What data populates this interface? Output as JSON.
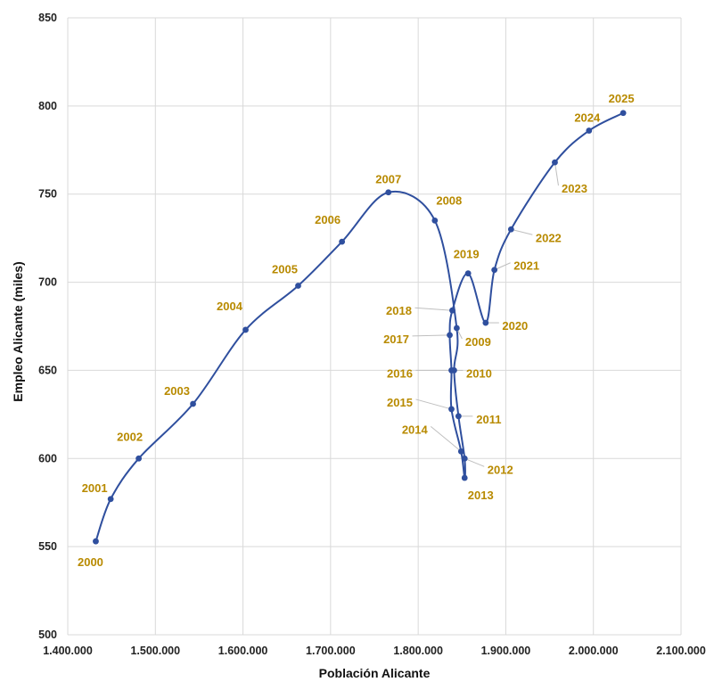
{
  "chart_data": {
    "type": "scatter",
    "title": "",
    "xlabel": "Población Alicante",
    "ylabel": "Empleo Alicante (miles)",
    "xlim": [
      1400000,
      2100000
    ],
    "ylim": [
      500,
      850
    ],
    "grid": true,
    "x_tick_labels": [
      "1.400.000",
      "1.500.000",
      "1.600.000",
      "1.700.000",
      "1.800.000",
      "1.900.000",
      "2.000.000",
      "2.100.000"
    ],
    "y_tick_labels": [
      "500",
      "550",
      "600",
      "650",
      "700",
      "750",
      "800",
      "850"
    ],
    "series_color": "#2f4f9e",
    "label_color": "#b88a00",
    "points": [
      {
        "label": "2000",
        "x": 1432000,
        "y": 553
      },
      {
        "label": "2001",
        "x": 1449000,
        "y": 577
      },
      {
        "label": "2002",
        "x": 1481000,
        "y": 600
      },
      {
        "label": "2003",
        "x": 1543000,
        "y": 631
      },
      {
        "label": "2004",
        "x": 1603000,
        "y": 673
      },
      {
        "label": "2005",
        "x": 1663000,
        "y": 698
      },
      {
        "label": "2006",
        "x": 1713000,
        "y": 723
      },
      {
        "label": "2007",
        "x": 1766000,
        "y": 751
      },
      {
        "label": "2008",
        "x": 1819000,
        "y": 735
      },
      {
        "label": "2009",
        "x": 1844000,
        "y": 674
      },
      {
        "label": "2010",
        "x": 1841000,
        "y": 650
      },
      {
        "label": "2011",
        "x": 1846000,
        "y": 624
      },
      {
        "label": "2012",
        "x": 1853000,
        "y": 600
      },
      {
        "label": "2013",
        "x": 1853000,
        "y": 589
      },
      {
        "label": "2014",
        "x": 1849000,
        "y": 604
      },
      {
        "label": "2015",
        "x": 1838000,
        "y": 628
      },
      {
        "label": "2016",
        "x": 1838000,
        "y": 650
      },
      {
        "label": "2017",
        "x": 1836000,
        "y": 670
      },
      {
        "label": "2018",
        "x": 1839000,
        "y": 684
      },
      {
        "label": "2019",
        "x": 1857000,
        "y": 705
      },
      {
        "label": "2020",
        "x": 1877000,
        "y": 677
      },
      {
        "label": "2021",
        "x": 1887000,
        "y": 707
      },
      {
        "label": "2022",
        "x": 1906000,
        "y": 730
      },
      {
        "label": "2023",
        "x": 1956000,
        "y": 768
      },
      {
        "label": "2024",
        "x": 1995000,
        "y": 786
      },
      {
        "label": "2025",
        "x": 2034000,
        "y": 796
      }
    ]
  }
}
